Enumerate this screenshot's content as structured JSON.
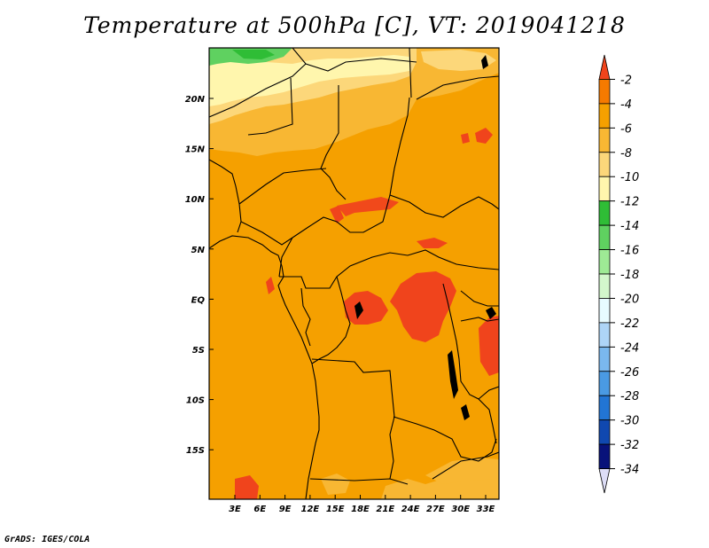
{
  "title": "Temperature at 500hPa [C], VT: 2019041218",
  "credit": "GrADS: IGES/COLA",
  "map": {
    "lat_labels": [
      "20N",
      "15N",
      "10N",
      "5N",
      "EQ",
      "5S",
      "10S",
      "15S"
    ],
    "lon_labels": [
      "3E",
      "6E",
      "9E",
      "12E",
      "15E",
      "18E",
      "21E",
      "24E",
      "27E",
      "30E",
      "33E"
    ]
  },
  "legend": {
    "labels": [
      "-2",
      "-4",
      "-6",
      "-8",
      "-10",
      "-12",
      "-14",
      "-16",
      "-18",
      "-20",
      "-22",
      "-24",
      "-26",
      "-28",
      "-30",
      "-32",
      "-34"
    ],
    "colors": [
      "#f0441c",
      "#f57a00",
      "#f5a000",
      "#f8b733",
      "#fcd77a",
      "#fff6ad",
      "#2fbd36",
      "#5fd160",
      "#9eea95",
      "#d3f7cc",
      "#e8fbff",
      "#aed5f7",
      "#7ab8ee",
      "#4a9ae3",
      "#2275d4",
      "#1048b0",
      "#08127a",
      "#ddddf6"
    ]
  }
}
